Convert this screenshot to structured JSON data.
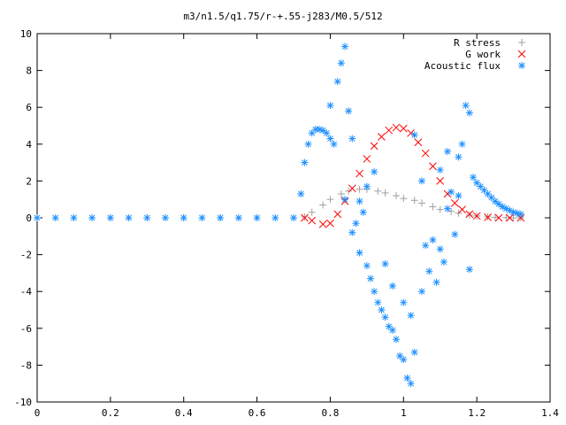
{
  "chart_data": {
    "type": "scatter",
    "title": "m3/n1.5/q1.75/r-+.55-j283/M0.5/512",
    "xlabel": "",
    "ylabel": "",
    "xlim": [
      0,
      1.4
    ],
    "ylim": [
      -10,
      10
    ],
    "xticks": [
      0,
      0.2,
      0.4,
      0.6,
      0.8,
      1,
      1.2,
      1.4
    ],
    "xtick_labels": [
      "0",
      "0.2",
      "0.4",
      "0.6",
      "0.8",
      "1",
      "1.2",
      "1.4"
    ],
    "yticks": [
      -10,
      -8,
      -6,
      -4,
      -2,
      0,
      2,
      4,
      6,
      8,
      10
    ],
    "ytick_labels": [
      "-10",
      "-8",
      "-6",
      "-4",
      "-2",
      "0",
      "2",
      "4",
      "6",
      "8",
      "10"
    ],
    "grid": false,
    "legend_position": "top-right",
    "series": [
      {
        "name": "R stress",
        "marker": "plus",
        "color": "#a0a0a0",
        "x": [
          0.0,
          0.1,
          0.2,
          0.3,
          0.4,
          0.5,
          0.6,
          0.7,
          0.73,
          0.75,
          0.78,
          0.8,
          0.83,
          0.85,
          0.88,
          0.9,
          0.93,
          0.95,
          0.98,
          1.0,
          1.03,
          1.05,
          1.08,
          1.1,
          1.13,
          1.15,
          1.18,
          1.2,
          1.23,
          1.25,
          1.28,
          1.3,
          1.32
        ],
        "y": [
          0,
          0,
          0,
          0,
          0,
          0,
          0,
          0,
          0.05,
          0.3,
          0.7,
          1.0,
          1.3,
          1.45,
          1.55,
          1.55,
          1.45,
          1.35,
          1.2,
          1.05,
          0.95,
          0.8,
          0.6,
          0.45,
          0.35,
          0.25,
          0.15,
          0.1,
          0.05,
          0.02,
          0.01,
          0.0,
          0.0
        ]
      },
      {
        "name": "G work",
        "marker": "cross",
        "color": "#ff0000",
        "x": [
          0.73,
          0.75,
          0.78,
          0.8,
          0.82,
          0.84,
          0.86,
          0.88,
          0.9,
          0.92,
          0.94,
          0.96,
          0.98,
          1.0,
          1.02,
          1.04,
          1.06,
          1.08,
          1.1,
          1.12,
          1.14,
          1.16,
          1.18,
          1.2,
          1.23,
          1.26,
          1.29,
          1.32
        ],
        "y": [
          0.0,
          -0.15,
          -0.35,
          -0.3,
          0.2,
          0.9,
          1.6,
          2.4,
          3.2,
          3.9,
          4.4,
          4.75,
          4.9,
          4.85,
          4.6,
          4.1,
          3.5,
          2.8,
          2.0,
          1.3,
          0.8,
          0.45,
          0.2,
          0.1,
          0.03,
          0.0,
          0.0,
          0.0
        ]
      },
      {
        "name": "Acoustic flux",
        "marker": "star",
        "color": "#1e90ff",
        "x": [
          0.0,
          0.05,
          0.1,
          0.15,
          0.2,
          0.25,
          0.3,
          0.35,
          0.4,
          0.45,
          0.5,
          0.55,
          0.6,
          0.65,
          0.7,
          0.72,
          0.73,
          0.74,
          0.75,
          0.76,
          0.77,
          0.78,
          0.79,
          0.8,
          0.81,
          0.8,
          0.82,
          0.83,
          0.84,
          0.85,
          0.86,
          0.84,
          0.86,
          0.88,
          0.9,
          0.91,
          0.92,
          0.93,
          0.94,
          0.95,
          0.96,
          0.97,
          0.98,
          0.99,
          1.0,
          1.01,
          1.02,
          1.03,
          0.87,
          0.89,
          0.88,
          0.9,
          0.92,
          0.95,
          0.97,
          1.0,
          1.02,
          1.05,
          1.07,
          1.08,
          1.1,
          1.12,
          1.13,
          1.15,
          1.16,
          1.18,
          1.17,
          1.19,
          1.2,
          1.21,
          1.22,
          1.23,
          1.24,
          1.25,
          1.26,
          1.27,
          1.28,
          1.29,
          1.3,
          1.31,
          1.32,
          1.1,
          1.12,
          1.14,
          1.05,
          1.03,
          1.06,
          1.09,
          1.11,
          1.15,
          1.18
        ],
        "y": [
          0,
          0,
          0,
          0,
          0,
          0,
          0,
          0,
          0,
          0,
          0,
          0,
          0,
          0,
          0,
          1.3,
          3.0,
          4.0,
          4.6,
          4.8,
          4.8,
          4.75,
          4.6,
          4.3,
          4.0,
          6.1,
          7.4,
          8.4,
          9.3,
          5.8,
          4.3,
          1.0,
          -0.8,
          -1.9,
          -2.6,
          -3.3,
          -4.0,
          -4.6,
          -5.0,
          -5.4,
          -5.9,
          -6.1,
          -6.6,
          -7.5,
          -7.7,
          -8.7,
          -9.0,
          -7.3,
          -0.3,
          0.3,
          0.9,
          1.7,
          2.5,
          -2.5,
          -3.7,
          -4.6,
          -5.3,
          -4.0,
          -2.9,
          -1.2,
          -1.7,
          0.5,
          1.4,
          3.3,
          4.0,
          5.7,
          6.1,
          2.2,
          1.9,
          1.7,
          1.5,
          1.3,
          1.1,
          0.9,
          0.75,
          0.6,
          0.5,
          0.4,
          0.3,
          0.25,
          0.2,
          2.6,
          3.6,
          -0.9,
          2.0,
          4.5,
          -1.5,
          -3.5,
          -2.4,
          1.2,
          -2.8
        ]
      }
    ]
  }
}
